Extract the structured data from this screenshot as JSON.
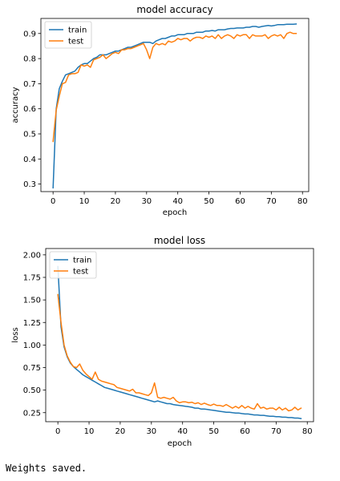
{
  "chart_data": [
    {
      "type": "line",
      "title": "model accuracy",
      "xlabel": "epoch",
      "ylabel": "accuracy",
      "xlim": [
        -3.9,
        82
      ],
      "ylim": [
        0.27,
        0.96
      ],
      "xticks": [
        0,
        10,
        20,
        30,
        40,
        50,
        60,
        70,
        80
      ],
      "yticks": [
        0.3,
        0.4,
        0.5,
        0.6,
        0.7,
        0.8,
        0.9
      ],
      "ytick_format": 1,
      "legend": "upper left",
      "grid": false,
      "series": [
        {
          "name": "train",
          "color": "#1f77b4",
          "values": [
            0.285,
            0.6,
            0.68,
            0.71,
            0.735,
            0.74,
            0.745,
            0.75,
            0.765,
            0.775,
            0.78,
            0.78,
            0.79,
            0.8,
            0.805,
            0.815,
            0.815,
            0.815,
            0.82,
            0.825,
            0.83,
            0.83,
            0.835,
            0.84,
            0.845,
            0.845,
            0.85,
            0.855,
            0.86,
            0.865,
            0.865,
            0.865,
            0.86,
            0.87,
            0.875,
            0.88,
            0.88,
            0.885,
            0.89,
            0.89,
            0.895,
            0.895,
            0.895,
            0.9,
            0.9,
            0.9,
            0.905,
            0.905,
            0.905,
            0.91,
            0.91,
            0.912,
            0.91,
            0.915,
            0.915,
            0.915,
            0.918,
            0.92,
            0.92,
            0.922,
            0.922,
            0.922,
            0.925,
            0.925,
            0.928,
            0.928,
            0.925,
            0.928,
            0.93,
            0.932,
            0.93,
            0.932,
            0.935,
            0.935,
            0.935,
            0.937,
            0.937,
            0.937,
            0.938
          ]
        },
        {
          "name": "test",
          "color": "#ff7f0e",
          "values": [
            0.47,
            0.595,
            0.65,
            0.7,
            0.705,
            0.735,
            0.74,
            0.74,
            0.745,
            0.775,
            0.77,
            0.775,
            0.765,
            0.795,
            0.8,
            0.805,
            0.815,
            0.8,
            0.81,
            0.82,
            0.825,
            0.82,
            0.835,
            0.835,
            0.84,
            0.84,
            0.845,
            0.85,
            0.855,
            0.86,
            0.835,
            0.8,
            0.845,
            0.86,
            0.855,
            0.86,
            0.855,
            0.87,
            0.865,
            0.87,
            0.88,
            0.875,
            0.88,
            0.88,
            0.87,
            0.88,
            0.885,
            0.885,
            0.88,
            0.89,
            0.885,
            0.89,
            0.88,
            0.895,
            0.88,
            0.89,
            0.895,
            0.89,
            0.88,
            0.895,
            0.89,
            0.895,
            0.895,
            0.88,
            0.895,
            0.89,
            0.89,
            0.89,
            0.895,
            0.88,
            0.89,
            0.895,
            0.89,
            0.895,
            0.88,
            0.9,
            0.905,
            0.9,
            0.9
          ]
        }
      ]
    },
    {
      "type": "line",
      "title": "model loss",
      "xlabel": "epoch",
      "ylabel": "loss",
      "xlim": [
        -3.9,
        82
      ],
      "ylim": [
        0.15,
        2.07
      ],
      "xticks": [
        0,
        10,
        20,
        30,
        40,
        50,
        60,
        70,
        80
      ],
      "yticks": [
        0.25,
        0.5,
        0.75,
        1.0,
        1.25,
        1.5,
        1.75,
        2.0
      ],
      "ytick_format": 2,
      "legend": "upper left",
      "grid": false,
      "series": [
        {
          "name": "train",
          "color": "#1f77b4",
          "values": [
            1.87,
            1.2,
            0.98,
            0.87,
            0.8,
            0.76,
            0.73,
            0.7,
            0.67,
            0.65,
            0.63,
            0.61,
            0.59,
            0.57,
            0.55,
            0.53,
            0.52,
            0.51,
            0.5,
            0.49,
            0.48,
            0.47,
            0.46,
            0.45,
            0.44,
            0.43,
            0.42,
            0.41,
            0.4,
            0.39,
            0.38,
            0.37,
            0.38,
            0.37,
            0.36,
            0.35,
            0.35,
            0.34,
            0.335,
            0.33,
            0.325,
            0.32,
            0.315,
            0.31,
            0.3,
            0.3,
            0.29,
            0.29,
            0.285,
            0.28,
            0.275,
            0.27,
            0.265,
            0.26,
            0.255,
            0.255,
            0.25,
            0.245,
            0.245,
            0.24,
            0.235,
            0.235,
            0.23,
            0.225,
            0.225,
            0.22,
            0.22,
            0.215,
            0.21,
            0.21,
            0.205,
            0.205,
            0.2,
            0.2,
            0.195,
            0.195,
            0.19,
            0.19,
            0.185
          ]
        },
        {
          "name": "test",
          "color": "#ff7f0e",
          "values": [
            1.56,
            1.25,
            1.0,
            0.88,
            0.81,
            0.76,
            0.75,
            0.79,
            0.72,
            0.68,
            0.65,
            0.62,
            0.7,
            0.62,
            0.6,
            0.59,
            0.58,
            0.57,
            0.56,
            0.53,
            0.52,
            0.51,
            0.5,
            0.49,
            0.51,
            0.47,
            0.47,
            0.46,
            0.45,
            0.44,
            0.47,
            0.58,
            0.42,
            0.41,
            0.42,
            0.41,
            0.4,
            0.42,
            0.38,
            0.36,
            0.37,
            0.37,
            0.36,
            0.365,
            0.35,
            0.36,
            0.34,
            0.355,
            0.34,
            0.33,
            0.345,
            0.33,
            0.33,
            0.32,
            0.34,
            0.32,
            0.3,
            0.32,
            0.3,
            0.33,
            0.3,
            0.32,
            0.3,
            0.29,
            0.35,
            0.3,
            0.31,
            0.29,
            0.3,
            0.3,
            0.28,
            0.31,
            0.28,
            0.3,
            0.27,
            0.28,
            0.31,
            0.28,
            0.3
          ]
        }
      ]
    }
  ],
  "output": {
    "message": "Weights saved."
  }
}
